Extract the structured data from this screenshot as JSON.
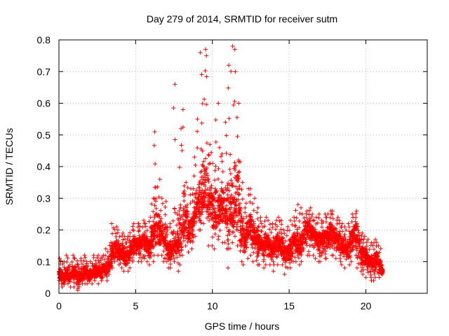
{
  "chart_data": {
    "type": "scatter",
    "title": "Day 279 of 2014, SRMTID for receiver sutm",
    "xlabel": "GPS time / hours",
    "ylabel": "SRMTID / TECUs",
    "xlim": [
      0,
      24
    ],
    "ylim": [
      0,
      0.8
    ],
    "xticks": [
      0,
      5,
      10,
      15,
      20
    ],
    "xtick_labels": [
      "0",
      "5",
      "10",
      "15",
      "20"
    ],
    "yticks": [
      0,
      0.1,
      0.2,
      0.3,
      0.4,
      0.5,
      0.6,
      0.7,
      0.8
    ],
    "ytick_labels": [
      "0",
      "0.1",
      "0.2",
      "0.3",
      "0.4",
      "0.5",
      "0.6",
      "0.7",
      "0.8"
    ],
    "grid": true,
    "marker": "+",
    "series": [
      {
        "name": "SRMTID",
        "color": "#ff0000",
        "x": [
          0.0,
          0.2,
          0.4,
          0.6,
          0.8,
          1.0,
          1.2,
          1.4,
          1.6,
          1.8,
          2.0,
          2.2,
          2.4,
          2.6,
          2.8,
          3.0,
          3.2,
          3.4,
          3.6,
          3.8,
          4.0,
          4.2,
          4.4,
          4.6,
          4.8,
          5.0,
          5.2,
          5.4,
          5.6,
          5.8,
          6.0,
          6.2,
          6.4,
          6.6,
          6.8,
          7.0,
          7.2,
          7.4,
          7.6,
          7.8,
          8.0,
          8.2,
          8.4,
          8.6,
          8.8,
          9.0,
          9.2,
          9.4,
          9.6,
          9.8,
          10.0,
          10.2,
          10.4,
          10.6,
          10.8,
          11.0,
          11.2,
          11.4,
          11.6,
          11.8,
          12.0,
          12.2,
          12.4,
          12.6,
          12.8,
          13.0,
          13.2,
          13.4,
          13.6,
          13.8,
          14.0,
          14.2,
          14.4,
          14.6,
          14.8,
          15.0,
          15.2,
          15.4,
          15.6,
          15.8,
          16.0,
          16.2,
          16.4,
          16.6,
          16.8,
          17.0,
          17.2,
          17.4,
          17.6,
          17.8,
          18.0,
          18.2,
          18.4,
          18.6,
          18.8,
          19.0,
          19.2,
          19.4,
          19.6,
          19.8,
          20.0,
          20.2,
          20.4,
          20.6,
          20.8,
          21.0
        ],
        "y_mean": [
          0.06,
          0.05,
          0.06,
          0.05,
          0.06,
          0.06,
          0.05,
          0.06,
          0.07,
          0.06,
          0.06,
          0.07,
          0.07,
          0.07,
          0.08,
          0.08,
          0.1,
          0.13,
          0.15,
          0.14,
          0.13,
          0.12,
          0.12,
          0.14,
          0.16,
          0.15,
          0.16,
          0.17,
          0.16,
          0.15,
          0.18,
          0.22,
          0.2,
          0.19,
          0.17,
          0.14,
          0.14,
          0.16,
          0.15,
          0.17,
          0.21,
          0.24,
          0.2,
          0.22,
          0.26,
          0.29,
          0.3,
          0.32,
          0.31,
          0.3,
          0.26,
          0.25,
          0.27,
          0.28,
          0.26,
          0.24,
          0.25,
          0.3,
          0.3,
          0.2,
          0.17,
          0.2,
          0.21,
          0.19,
          0.17,
          0.16,
          0.15,
          0.16,
          0.15,
          0.14,
          0.15,
          0.16,
          0.15,
          0.13,
          0.13,
          0.14,
          0.16,
          0.16,
          0.15,
          0.17,
          0.2,
          0.21,
          0.19,
          0.18,
          0.17,
          0.17,
          0.18,
          0.18,
          0.2,
          0.19,
          0.18,
          0.17,
          0.15,
          0.14,
          0.15,
          0.18,
          0.2,
          0.16,
          0.13,
          0.12,
          0.11,
          0.1,
          0.1,
          0.11,
          0.09,
          0.07
        ],
        "y_max": [
          0.11,
          0.1,
          0.12,
          0.09,
          0.12,
          0.11,
          0.09,
          0.11,
          0.12,
          0.1,
          0.1,
          0.12,
          0.12,
          0.11,
          0.12,
          0.14,
          0.16,
          0.22,
          0.21,
          0.2,
          0.19,
          0.18,
          0.18,
          0.2,
          0.22,
          0.22,
          0.22,
          0.23,
          0.22,
          0.24,
          0.3,
          0.51,
          0.36,
          0.3,
          0.29,
          0.21,
          0.22,
          0.66,
          0.25,
          0.52,
          0.58,
          0.35,
          0.33,
          0.33,
          0.43,
          0.55,
          0.76,
          0.77,
          0.75,
          0.47,
          0.41,
          0.6,
          0.46,
          0.44,
          0.54,
          0.72,
          0.78,
          0.77,
          0.6,
          0.35,
          0.27,
          0.33,
          0.33,
          0.3,
          0.27,
          0.24,
          0.22,
          0.24,
          0.23,
          0.22,
          0.23,
          0.24,
          0.23,
          0.2,
          0.21,
          0.23,
          0.24,
          0.28,
          0.27,
          0.25,
          0.26,
          0.27,
          0.25,
          0.24,
          0.25,
          0.23,
          0.25,
          0.25,
          0.26,
          0.26,
          0.24,
          0.23,
          0.22,
          0.21,
          0.22,
          0.25,
          0.26,
          0.22,
          0.19,
          0.18,
          0.17,
          0.16,
          0.16,
          0.17,
          0.15,
          0.09
        ],
        "y_min": [
          0.03,
          0.02,
          0.03,
          0.02,
          0.02,
          0.03,
          0.01,
          0.03,
          0.03,
          0.03,
          0.03,
          0.04,
          0.03,
          0.04,
          0.05,
          0.04,
          0.06,
          0.08,
          0.1,
          0.09,
          0.08,
          0.07,
          0.07,
          0.08,
          0.1,
          0.1,
          0.1,
          0.11,
          0.1,
          0.09,
          0.1,
          0.12,
          0.12,
          0.12,
          0.1,
          0.08,
          0.08,
          0.1,
          0.07,
          0.09,
          0.12,
          0.15,
          0.13,
          0.14,
          0.18,
          0.2,
          0.2,
          0.22,
          0.15,
          0.15,
          0.14,
          0.17,
          0.18,
          0.16,
          0.14,
          0.08,
          0.16,
          0.18,
          0.15,
          0.1,
          0.09,
          0.11,
          0.12,
          0.1,
          0.09,
          0.09,
          0.08,
          0.09,
          0.09,
          0.07,
          0.09,
          0.09,
          0.09,
          0.06,
          0.08,
          0.08,
          0.1,
          0.1,
          0.09,
          0.1,
          0.12,
          0.12,
          0.12,
          0.11,
          0.1,
          0.1,
          0.11,
          0.11,
          0.12,
          0.12,
          0.11,
          0.1,
          0.09,
          0.08,
          0.09,
          0.1,
          0.12,
          0.08,
          0.07,
          0.06,
          0.05,
          0.04,
          0.04,
          0.05,
          0.05,
          0.06
        ]
      }
    ]
  }
}
